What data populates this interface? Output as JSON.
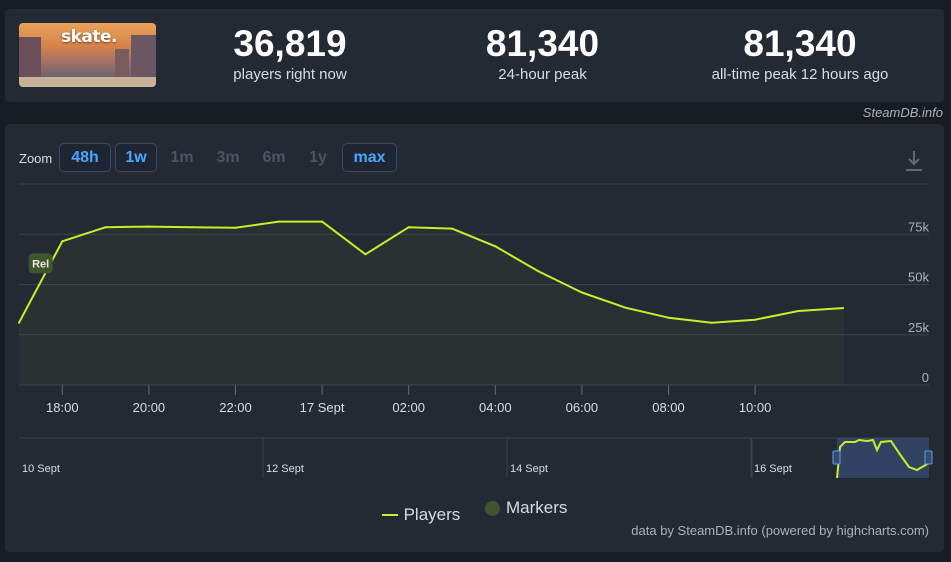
{
  "header": {
    "game_logo_text": "skate.",
    "stats": [
      {
        "value": "36,819",
        "label": "players right now"
      },
      {
        "value": "81,340",
        "label": "24-hour peak"
      },
      {
        "value": "81,340",
        "label": "all-time peak 12 hours ago"
      }
    ],
    "credit": "SteamDB.info"
  },
  "toolbar": {
    "zoom_label": "Zoom",
    "zoom_options": [
      {
        "label": "48h",
        "active": true
      },
      {
        "label": "1w",
        "active": true
      },
      {
        "label": "1m",
        "active": false
      },
      {
        "label": "3m",
        "active": false
      },
      {
        "label": "6m",
        "active": false
      },
      {
        "label": "1y",
        "active": false
      },
      {
        "label": "max",
        "active": true
      }
    ]
  },
  "chart_data": {
    "type": "area",
    "x_ticks": [
      "18:00",
      "20:00",
      "22:00",
      "17 Sept",
      "02:00",
      "04:00",
      "06:00",
      "08:00",
      "10:00"
    ],
    "y_ticks": [
      "0",
      "25k",
      "50k",
      "75k"
    ],
    "ylim": [
      0,
      100000
    ],
    "x_range_hours": [
      -1,
      19
    ],
    "grid": true,
    "series": [
      {
        "name": "Players",
        "color": "#c6f02a",
        "points": [
          [
            -1,
            31000
          ],
          [
            0,
            71500
          ],
          [
            1,
            78500
          ],
          [
            2,
            78800
          ],
          [
            3,
            78500
          ],
          [
            4,
            78200
          ],
          [
            5,
            81300
          ],
          [
            6,
            81300
          ],
          [
            7,
            65000
          ],
          [
            8,
            78500
          ],
          [
            9,
            77800
          ],
          [
            10,
            69000
          ],
          [
            11,
            56500
          ],
          [
            12,
            46000
          ],
          [
            13,
            38500
          ],
          [
            14,
            33500
          ],
          [
            15,
            31000
          ],
          [
            16,
            32500
          ],
          [
            17,
            36800
          ]
        ]
      }
    ],
    "markers": [
      {
        "label": "Rel",
        "x": -0.5,
        "y": 60000,
        "color": "#3e5530"
      }
    ],
    "navigator": {
      "labels": [
        "10 Sept",
        "12 Sept",
        "14 Sept",
        "16 Sept"
      ]
    }
  },
  "legend": {
    "players": "Players",
    "markers": "Markers"
  },
  "footer": "data by SteamDB.info (powered by highcharts.com)"
}
